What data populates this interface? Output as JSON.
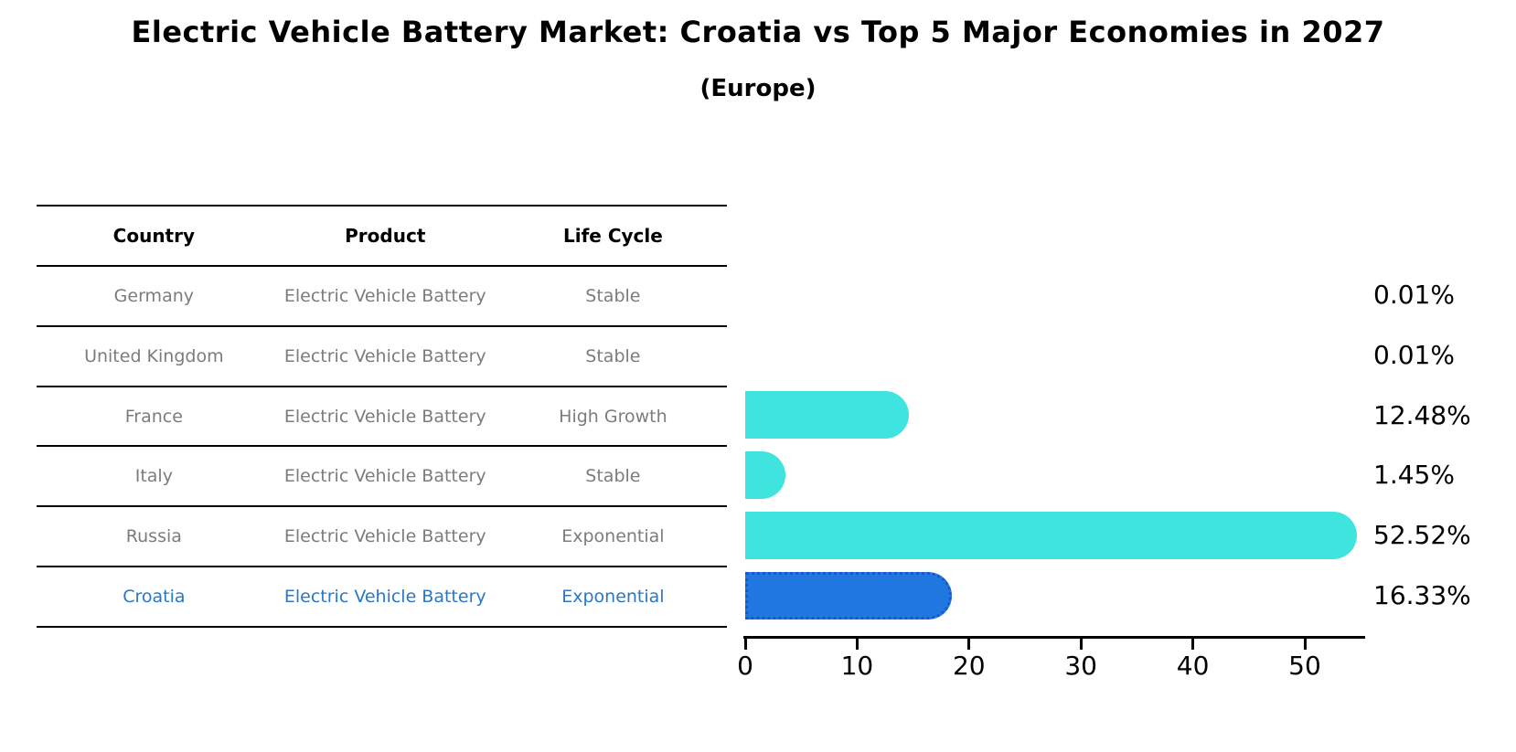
{
  "title": "Electric Vehicle Battery Market: Croatia vs Top 5 Major Economies in 2027",
  "subtitle": "(Europe)",
  "table": {
    "headers": [
      "Country",
      "Product",
      "Life Cycle"
    ],
    "rows": [
      {
        "country": "Germany",
        "product": "Electric Vehicle Battery",
        "life_cycle": "Stable"
      },
      {
        "country": "United Kingdom",
        "product": "Electric Vehicle Battery",
        "life_cycle": "Stable"
      },
      {
        "country": "France",
        "product": "Electric Vehicle Battery",
        "life_cycle": "High Growth"
      },
      {
        "country": "Italy",
        "product": "Electric Vehicle Battery",
        "life_cycle": "Stable"
      },
      {
        "country": "Russia",
        "product": "Electric Vehicle Battery",
        "life_cycle": "Exponential"
      },
      {
        "country": "Croatia",
        "product": "Electric Vehicle Battery",
        "life_cycle": "Exponential"
      }
    ]
  },
  "chart_data": {
    "type": "bar",
    "orientation": "horizontal",
    "title": "Electric Vehicle Battery Market: Croatia vs Top 5 Major Economies in 2027",
    "subtitle": "(Europe)",
    "categories": [
      "Germany",
      "United Kingdom",
      "France",
      "Italy",
      "Russia",
      "Croatia"
    ],
    "values": [
      0.01,
      0.01,
      12.48,
      1.45,
      52.52,
      16.33
    ],
    "labels": [
      "0.01%",
      "0.01%",
      "12.48%",
      "1.45%",
      "52.52%",
      "16.33%"
    ],
    "xticks": [
      "0",
      "10",
      "20",
      "30",
      "40",
      "50"
    ],
    "xlim": [
      0,
      55.4
    ],
    "unit": "%",
    "grid": false,
    "legend": false,
    "highlight_index": 5,
    "bar_color": "#40E4DF",
    "highlight_color": "#2077E0",
    "highlight_border_color": "#1757D0"
  },
  "colors": {
    "text_black": "#000000",
    "table_text_gray": "#7c7c7c",
    "highlight_text_blue": "#2878C8"
  }
}
